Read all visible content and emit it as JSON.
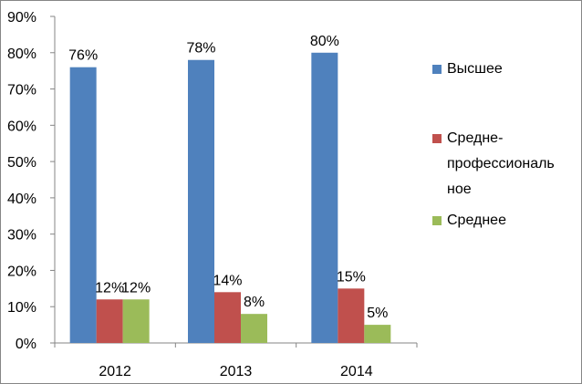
{
  "chart_data": {
    "type": "bar",
    "title": "",
    "xlabel": "",
    "ylabel": "",
    "categories": [
      "2012",
      "2013",
      "2014"
    ],
    "ylim": [
      0,
      90
    ],
    "yticks": [
      "0%",
      "10%",
      "20%",
      "30%",
      "40%",
      "50%",
      "60%",
      "70%",
      "80%",
      "90%"
    ],
    "grid": false,
    "legend_position": "right",
    "series": [
      {
        "name": "Высшее",
        "color": "#4F81BD",
        "values": [
          76,
          78,
          80
        ],
        "labels": [
          "76%",
          "78%",
          "80%"
        ]
      },
      {
        "name": "Средне-профессиональное",
        "color": "#C0504D",
        "values": [
          12,
          14,
          15
        ],
        "labels": [
          "12%",
          "14%",
          "15%"
        ]
      },
      {
        "name": "Среднее",
        "color": "#9BBB59",
        "values": [
          12,
          8,
          5
        ],
        "labels": [
          "12%",
          "8%",
          "5%"
        ]
      }
    ],
    "legend": {
      "items": [
        {
          "lines": [
            "Высшее"
          ],
          "color": "#4F81BD"
        },
        {
          "lines": [
            "Средне-",
            "профессиональ",
            "ное"
          ],
          "color": "#C0504D"
        },
        {
          "lines": [
            "Среднее"
          ],
          "color": "#9BBB59"
        }
      ]
    }
  }
}
